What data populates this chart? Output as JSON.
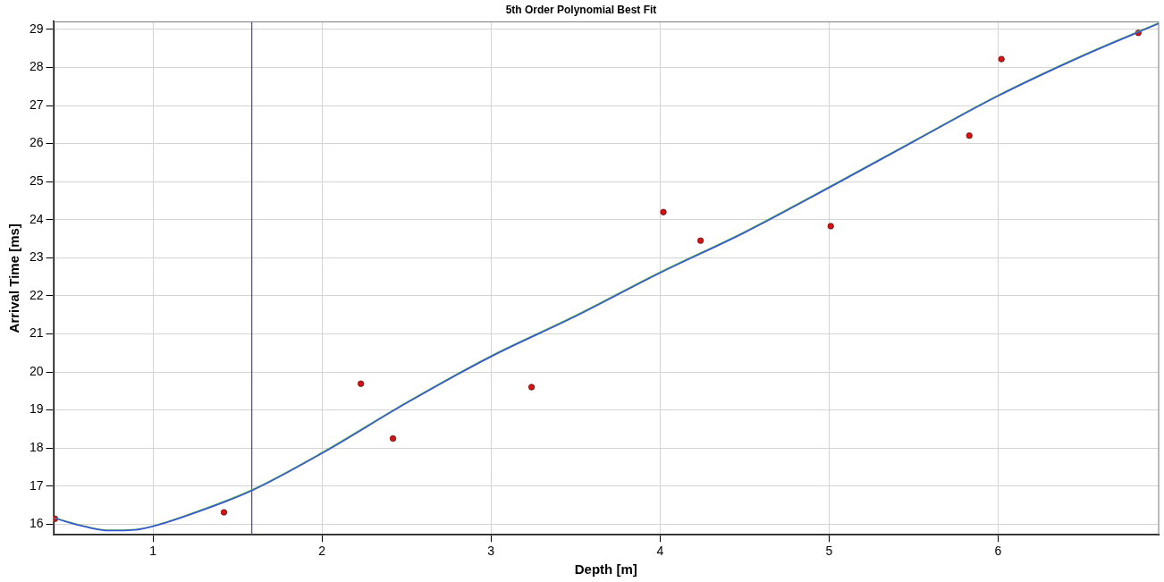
{
  "chart_data": {
    "type": "scatter",
    "title": "5th Order Polynomial Best Fit",
    "xlabel": "Depth [m]",
    "ylabel": "Arrival Time [ms]",
    "xlim": [
      0.41,
      6.95
    ],
    "xticks": [
      1,
      2,
      3,
      4,
      5,
      6
    ],
    "ylim": [
      15.72,
      29.2
    ],
    "yticks": [
      16,
      17,
      18,
      19,
      20,
      21,
      22,
      23,
      24,
      25,
      26,
      27,
      28,
      29
    ],
    "grid": true,
    "legend": false,
    "series": [
      {
        "type": "line",
        "color": "#3355dd",
        "marker": "none",
        "x": [
          0.42,
          0.6,
          0.74,
          0.9,
          1.0,
          1.27,
          1.585,
          2.0,
          2.5,
          3.0,
          3.5,
          4.0,
          4.5,
          5.0,
          5.5,
          6.0,
          6.5,
          6.95
        ],
        "values": [
          16.15,
          15.93,
          15.83,
          15.85,
          15.94,
          16.33,
          16.88,
          17.86,
          19.18,
          20.4,
          21.46,
          22.6,
          23.66,
          24.84,
          26.05,
          27.25,
          28.3,
          29.15
        ]
      },
      {
        "type": "line",
        "color": "#5aaa4a",
        "marker": "none",
        "x": [
          0.42,
          0.6,
          0.74,
          0.9,
          1.0,
          1.27,
          1.585,
          2.0,
          2.5,
          3.0,
          3.5,
          4.0,
          4.5,
          5.0,
          5.5,
          6.0,
          6.5,
          6.95
        ],
        "values": [
          16.16,
          15.94,
          15.84,
          15.86,
          15.95,
          16.35,
          16.9,
          17.88,
          19.2,
          20.42,
          21.48,
          22.62,
          23.68,
          24.86,
          26.07,
          27.27,
          28.32,
          29.17
        ]
      },
      {
        "color": "#dd1111",
        "marker": "circle",
        "x": [
          0.42,
          1.42,
          2.23,
          2.42,
          3.24,
          4.02,
          4.24,
          5.01,
          5.83,
          6.02,
          6.83
        ],
        "values": [
          16.14,
          16.31,
          19.69,
          18.25,
          19.6,
          24.2,
          23.45,
          23.83,
          26.21,
          28.22,
          28.91
        ]
      }
    ],
    "ref_lines": [
      {
        "axis": "x",
        "value": 1.585,
        "color": "#2a2a6a"
      }
    ]
  }
}
